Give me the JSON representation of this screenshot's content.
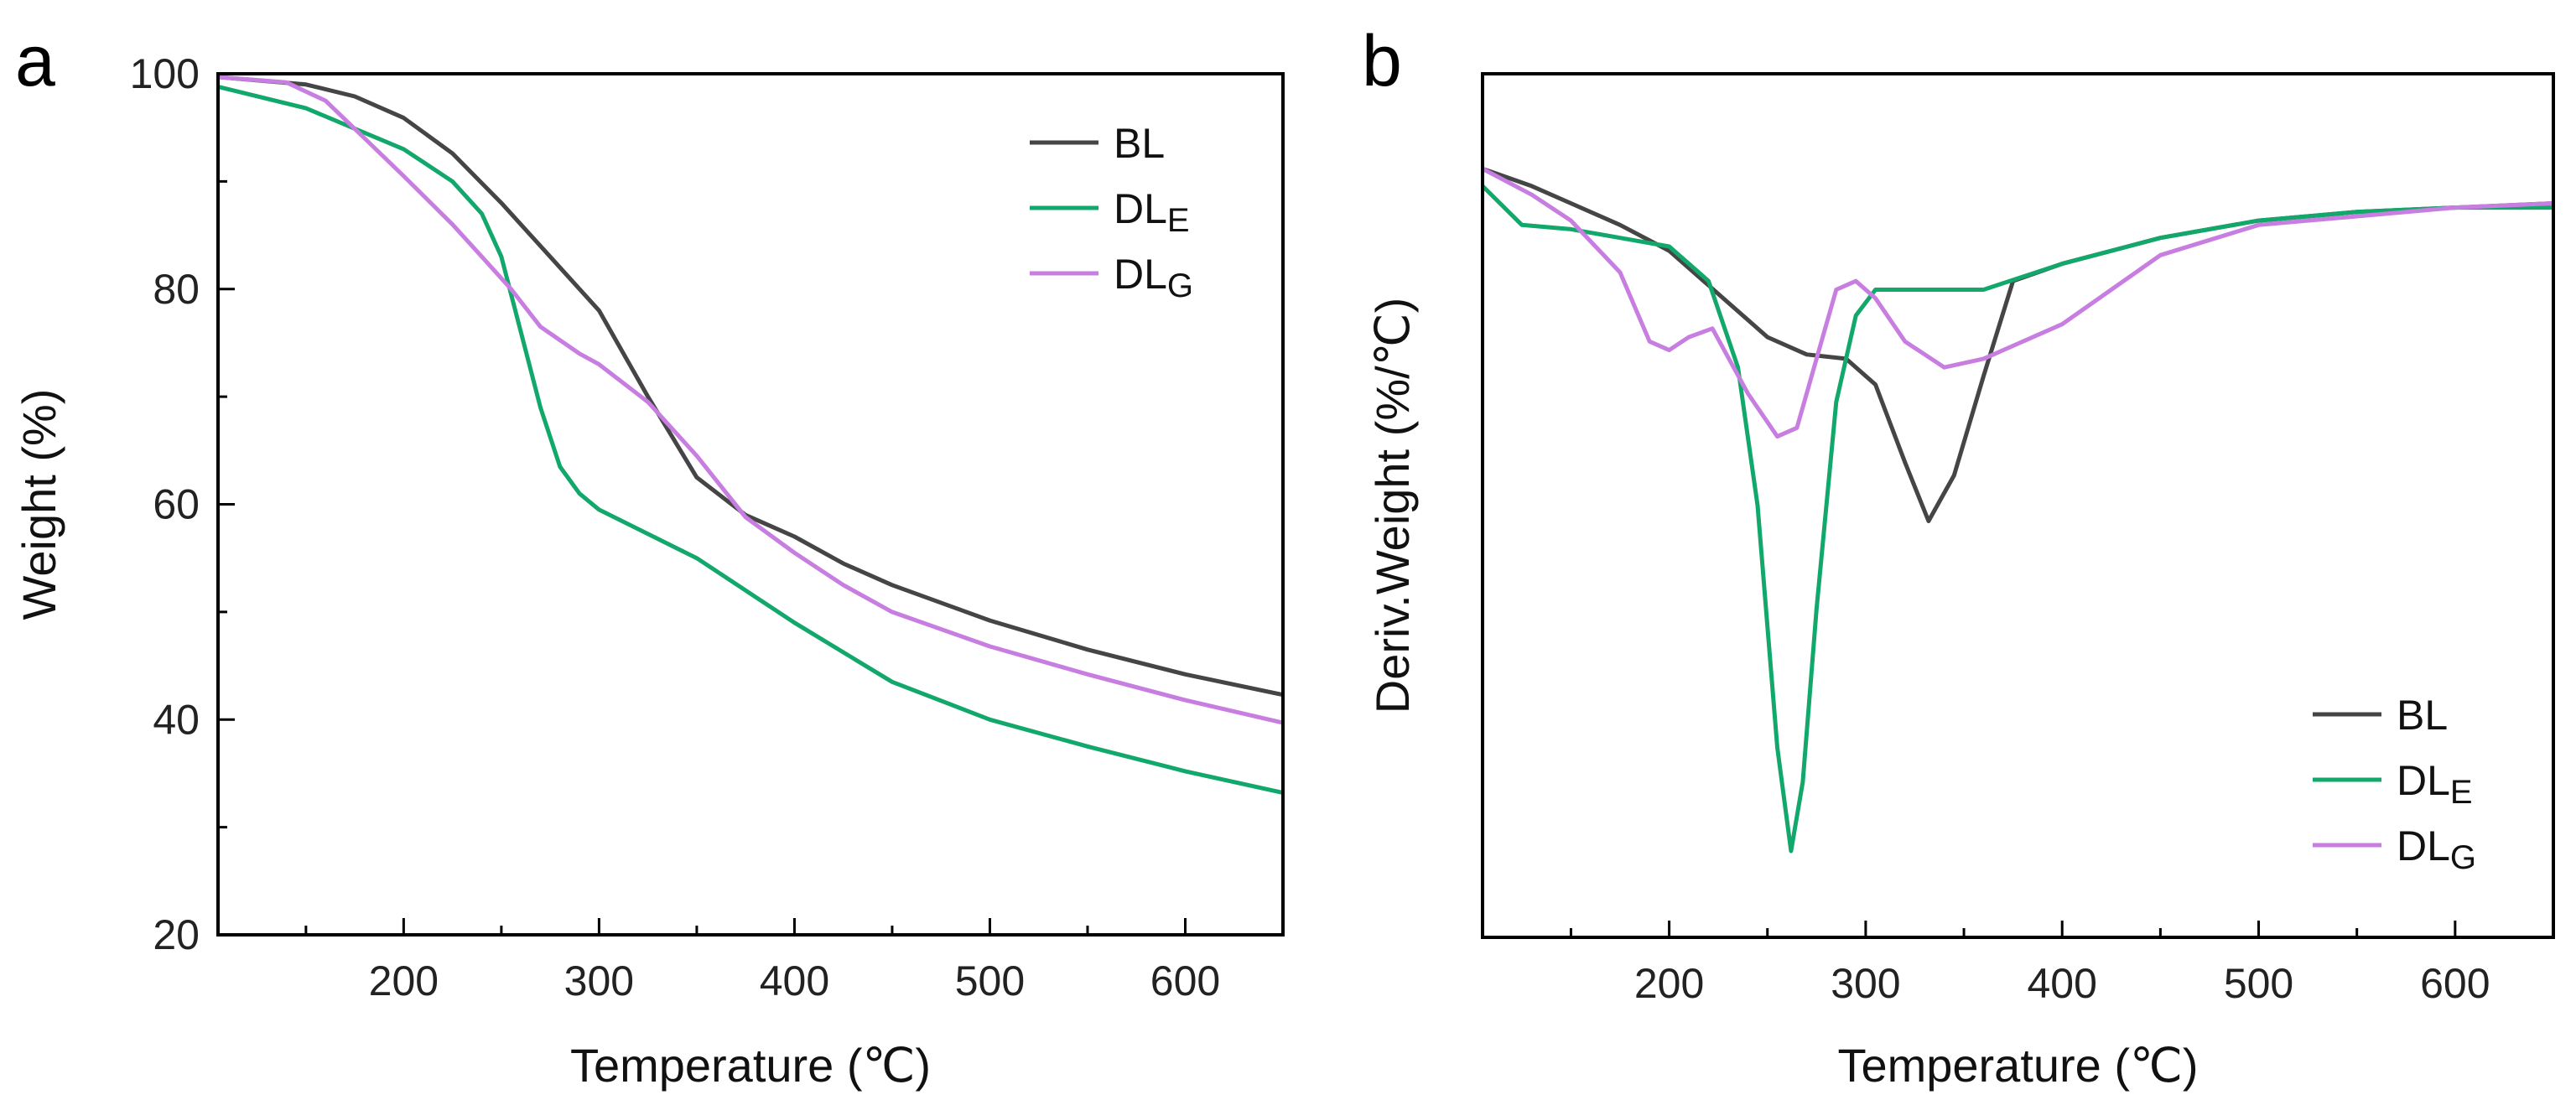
{
  "chart_data": [
    {
      "panel": "a",
      "type": "line",
      "title": "",
      "xlabel": "Temperature (℃)",
      "ylabel": "Weight (%)",
      "xlim": [
        105,
        650
      ],
      "ylim": [
        20,
        100
      ],
      "xticks": [
        200,
        300,
        400,
        500,
        600
      ],
      "yticks": [
        20,
        40,
        60,
        80,
        100
      ],
      "legend_position": "top-right",
      "series": [
        {
          "name": "BL",
          "color": "#454545",
          "points": [
            [
              105,
              99.7
            ],
            [
              150,
              99.0
            ],
            [
              175,
              97.9
            ],
            [
              200,
              95.9
            ],
            [
              225,
              92.6
            ],
            [
              250,
              88.0
            ],
            [
              275,
              83.0
            ],
            [
              300,
              78.0
            ],
            [
              325,
              70.0
            ],
            [
              350,
              62.5
            ],
            [
              375,
              59.0
            ],
            [
              400,
              57.0
            ],
            [
              425,
              54.5
            ],
            [
              450,
              52.5
            ],
            [
              500,
              49.2
            ],
            [
              550,
              46.5
            ],
            [
              600,
              44.2
            ],
            [
              650,
              42.3
            ]
          ]
        },
        {
          "name": "DLE",
          "legend_main": "DL",
          "legend_sub": "E",
          "color": "#12a86b",
          "points": [
            [
              105,
              98.8
            ],
            [
              150,
              96.8
            ],
            [
              200,
              93.0
            ],
            [
              225,
              90.0
            ],
            [
              240,
              87.0
            ],
            [
              250,
              83.0
            ],
            [
              260,
              76.0
            ],
            [
              270,
              69.0
            ],
            [
              280,
              63.5
            ],
            [
              290,
              61.0
            ],
            [
              300,
              59.5
            ],
            [
              350,
              55.0
            ],
            [
              400,
              49.0
            ],
            [
              450,
              43.5
            ],
            [
              500,
              40.0
            ],
            [
              550,
              37.5
            ],
            [
              600,
              35.2
            ],
            [
              650,
              33.2
            ]
          ]
        },
        {
          "name": "DLG",
          "legend_main": "DL",
          "legend_sub": "G",
          "color": "#c77ee0",
          "points": [
            [
              105,
              99.7
            ],
            [
              140,
              99.2
            ],
            [
              160,
              97.5
            ],
            [
              180,
              94.0
            ],
            [
              200,
              90.5
            ],
            [
              225,
              86.0
            ],
            [
              240,
              83.0
            ],
            [
              255,
              80.0
            ],
            [
              270,
              76.5
            ],
            [
              290,
              74.0
            ],
            [
              300,
              73.0
            ],
            [
              325,
              69.5
            ],
            [
              350,
              64.5
            ],
            [
              375,
              58.8
            ],
            [
              400,
              55.5
            ],
            [
              425,
              52.5
            ],
            [
              450,
              50.0
            ],
            [
              500,
              46.8
            ],
            [
              550,
              44.2
            ],
            [
              600,
              41.8
            ],
            [
              650,
              39.7
            ]
          ]
        }
      ]
    },
    {
      "panel": "b",
      "type": "line",
      "title": "",
      "xlabel": "Temperature (℃)",
      "ylabel": "Deriv.Weight (%/℃)",
      "xlim": [
        105,
        650
      ],
      "ylim": [
        -1.0,
        0.0
      ],
      "y_axis_labels": "none",
      "xticks": [
        200,
        300,
        400,
        500,
        600
      ],
      "legend_position": "bottom-right",
      "series": [
        {
          "name": "BL",
          "color": "#454545",
          "points": [
            [
              105,
              -0.11
            ],
            [
              130,
              -0.13
            ],
            [
              150,
              -0.15
            ],
            [
              175,
              -0.175
            ],
            [
              200,
              -0.205
            ],
            [
              225,
              -0.255
            ],
            [
              250,
              -0.305
            ],
            [
              270,
              -0.325
            ],
            [
              290,
              -0.33
            ],
            [
              305,
              -0.36
            ],
            [
              320,
              -0.45
            ],
            [
              332,
              -0.518
            ],
            [
              345,
              -0.465
            ],
            [
              360,
              -0.35
            ],
            [
              375,
              -0.24
            ],
            [
              400,
              -0.22
            ],
            [
              450,
              -0.19
            ],
            [
              500,
              -0.17
            ],
            [
              550,
              -0.16
            ],
            [
              600,
              -0.155
            ],
            [
              650,
              -0.15
            ]
          ]
        },
        {
          "name": "DLE",
          "legend_main": "DL",
          "legend_sub": "E",
          "color": "#12a86b",
          "points": [
            [
              105,
              -0.13
            ],
            [
              125,
              -0.175
            ],
            [
              150,
              -0.18
            ],
            [
              175,
              -0.19
            ],
            [
              200,
              -0.2
            ],
            [
              220,
              -0.24
            ],
            [
              235,
              -0.34
            ],
            [
              245,
              -0.5
            ],
            [
              255,
              -0.78
            ],
            [
              262,
              -0.9
            ],
            [
              268,
              -0.82
            ],
            [
              275,
              -0.62
            ],
            [
              285,
              -0.38
            ],
            [
              295,
              -0.28
            ],
            [
              305,
              -0.25
            ],
            [
              325,
              -0.25
            ],
            [
              360,
              -0.25
            ],
            [
              400,
              -0.22
            ],
            [
              450,
              -0.19
            ],
            [
              500,
              -0.17
            ],
            [
              550,
              -0.16
            ],
            [
              600,
              -0.155
            ],
            [
              650,
              -0.155
            ]
          ]
        },
        {
          "name": "DLG",
          "legend_main": "DL",
          "legend_sub": "G",
          "color": "#c77ee0",
          "points": [
            [
              105,
              -0.11
            ],
            [
              130,
              -0.14
            ],
            [
              150,
              -0.17
            ],
            [
              175,
              -0.23
            ],
            [
              190,
              -0.31
            ],
            [
              200,
              -0.32
            ],
            [
              210,
              -0.305
            ],
            [
              222,
              -0.295
            ],
            [
              240,
              -0.37
            ],
            [
              255,
              -0.42
            ],
            [
              265,
              -0.41
            ],
            [
              275,
              -0.33
            ],
            [
              285,
              -0.25
            ],
            [
              295,
              -0.24
            ],
            [
              305,
              -0.26
            ],
            [
              320,
              -0.31
            ],
            [
              340,
              -0.34
            ],
            [
              360,
              -0.33
            ],
            [
              400,
              -0.29
            ],
            [
              450,
              -0.21
            ],
            [
              500,
              -0.175
            ],
            [
              550,
              -0.165
            ],
            [
              600,
              -0.155
            ],
            [
              650,
              -0.15
            ]
          ]
        }
      ]
    }
  ]
}
